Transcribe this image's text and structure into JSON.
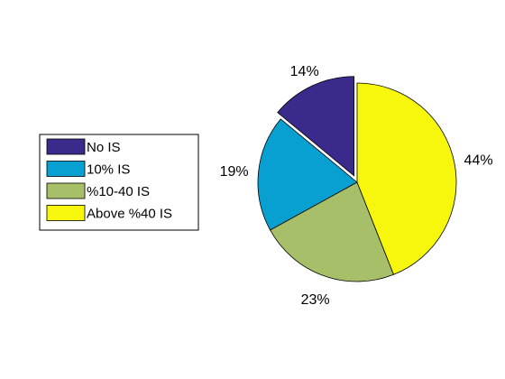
{
  "chart_data": {
    "type": "pie",
    "title": "",
    "legend_position": "left",
    "exploded": [
      "No IS"
    ],
    "slices": [
      {
        "label": "No IS",
        "value": 14,
        "display": "14%",
        "color": "#3a2a8c"
      },
      {
        "label": "10% IS",
        "value": 19,
        "display": "19%",
        "color": "#08a0d0"
      },
      {
        "label": "%10-40 IS",
        "value": 23,
        "display": "23%",
        "color": "#a7bf68"
      },
      {
        "label": "Above %40 IS",
        "value": 44,
        "display": "44%",
        "color": "#f7f70e"
      }
    ]
  }
}
